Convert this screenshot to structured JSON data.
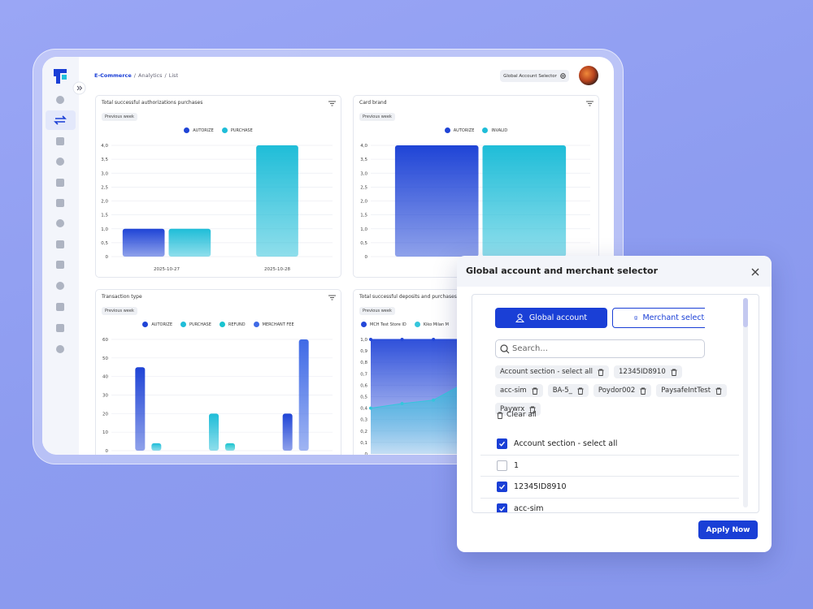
{
  "breadcrumb": {
    "items": [
      "E-Commerce",
      "Analytics",
      "List"
    ],
    "separator": "/"
  },
  "header": {
    "account_selector": "Global Account Selector"
  },
  "chart_data": [
    {
      "type": "bar",
      "title": "Total successful authorizations purchases",
      "period": "Previous week",
      "legend": "top",
      "categories": [
        "2025-10-27",
        "2025-10-28"
      ],
      "series": [
        {
          "name": "AUTORIZE",
          "color": "#1f44d6",
          "values": [
            1,
            0
          ]
        },
        {
          "name": "PURCHASE",
          "color": "#1fbdd8",
          "values": [
            1,
            4
          ]
        }
      ],
      "ylim": [
        0,
        4
      ],
      "yticks": [
        0,
        {
          "value": 0.5,
          "label": "0,5"
        },
        {
          "value": 1,
          "label": "1,0"
        },
        {
          "value": 1.5,
          "label": "1,5"
        },
        {
          "value": 2,
          "label": "2,0"
        },
        {
          "value": 2.5,
          "label": "2,5"
        },
        {
          "value": 3,
          "label": "3,0"
        },
        {
          "value": 3.5,
          "label": "3,5"
        },
        {
          "value": 4,
          "label": "4,0"
        }
      ],
      "grid": true
    },
    {
      "type": "bar",
      "title": "Card brand",
      "period": "Previous week",
      "legend": "top",
      "categories": [
        null
      ],
      "series": [
        {
          "name": "AUTORIZE",
          "color": "#1f44d6",
          "values": [
            4
          ]
        },
        {
          "name": "INVALID",
          "color": "#1fbdd8",
          "values": [
            4
          ]
        }
      ],
      "ylim": [
        0,
        4
      ],
      "yticks": [
        0,
        {
          "value": 0.5,
          "label": "0,5"
        },
        {
          "value": 1,
          "label": "1,0"
        },
        {
          "value": 1.5,
          "label": "1,5"
        },
        {
          "value": 2,
          "label": "2,0"
        },
        {
          "value": 2.5,
          "label": "2,5"
        },
        {
          "value": 3,
          "label": "3,0"
        },
        {
          "value": 3.5,
          "label": "3,5"
        },
        {
          "value": 4,
          "label": "4,0"
        }
      ],
      "grid": true
    },
    {
      "type": "bar",
      "title": "Transaction type",
      "period": "Previous week",
      "legend": "top",
      "categories": [
        null,
        null,
        null
      ],
      "series": [
        {
          "name": "AUTORIZE",
          "color": "#1f44d6",
          "values": [
            45,
            0,
            20
          ]
        },
        {
          "name": "PURCHASE",
          "color": "#1fbdd8",
          "values": [
            4,
            20,
            0
          ]
        },
        {
          "name": "REFUND",
          "color": "#19c3cf",
          "values": [
            0,
            4,
            0
          ]
        },
        {
          "name": "MERCHANT FEE",
          "color": "#3f6ae6",
          "values": [
            0,
            0,
            60
          ]
        }
      ],
      "ylim": [
        0,
        60
      ],
      "yticks": [
        0,
        10,
        20,
        30,
        40,
        50,
        60
      ],
      "grid": true
    },
    {
      "type": "area",
      "title": "Total successful deposits and purchases",
      "period": "Previous week",
      "legend": "top-left",
      "categories": [
        null,
        null,
        null,
        null,
        null,
        null,
        null,
        null
      ],
      "series": [
        {
          "name": "MCH Test Store ID",
          "color": "#2447d8",
          "values": [
            1,
            1,
            1,
            1,
            1,
            1,
            1,
            1
          ]
        },
        {
          "name": "Kiko Milan M",
          "color": "#35c6dc",
          "values": [
            0.4,
            0.44,
            0.47,
            0.62,
            0.7,
            0.75,
            0.8,
            0.85
          ]
        }
      ],
      "ylim": [
        0,
        1
      ],
      "yticks": [
        0,
        {
          "value": 0.1,
          "label": "0,1"
        },
        {
          "value": 0.2,
          "label": "0,2"
        },
        {
          "value": 0.3,
          "label": "0,3"
        },
        {
          "value": 0.4,
          "label": "0,4"
        },
        {
          "value": 0.5,
          "label": "0,5"
        },
        {
          "value": 0.6,
          "label": "0,6"
        },
        {
          "value": 0.7,
          "label": "0,7"
        },
        {
          "value": 0.8,
          "label": "0,8"
        },
        {
          "value": 0.9,
          "label": "0,9"
        },
        {
          "value": 1,
          "label": "1,0"
        }
      ],
      "grid": true
    }
  ],
  "modal": {
    "title": "Global account and merchant selector",
    "tabs": [
      {
        "label": "Global account",
        "active": true
      },
      {
        "label": "Merchant selector",
        "active": false
      }
    ],
    "search_placeholder": "Search...",
    "chips": [
      "Account section - select all",
      "12345ID8910",
      "acc-sim",
      "BA-5_",
      "Poydor002",
      "PaysafeIntTest",
      "Paywrx"
    ],
    "clear_all": "Clear all",
    "items": [
      {
        "label": "Account section - select all",
        "checked": true
      },
      {
        "label": "1",
        "checked": false
      },
      {
        "label": "12345ID8910",
        "checked": true
      },
      {
        "label": "acc-sim",
        "checked": true
      }
    ],
    "apply": "Apply Now"
  }
}
